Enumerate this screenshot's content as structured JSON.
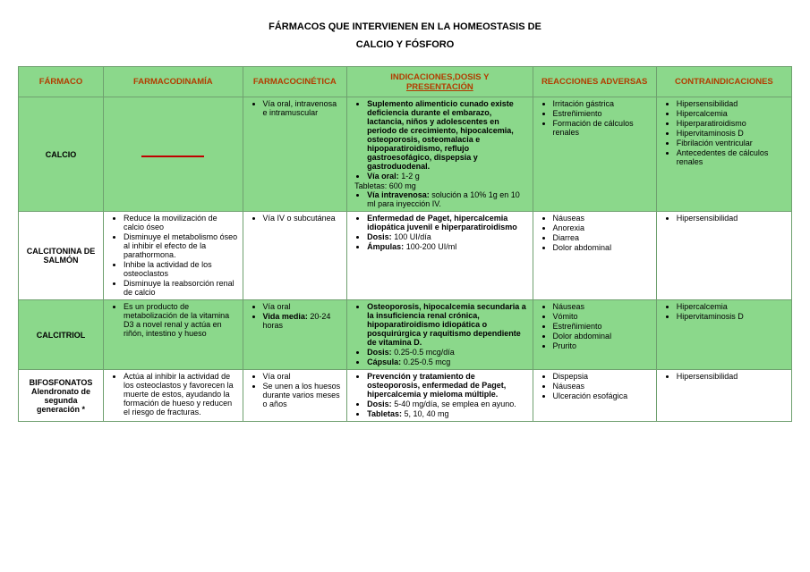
{
  "title_line1": "FÁRMACOS QUE INTERVIENEN EN LA HOMEOSTASIS DE",
  "title_line2": "CALCIO Y FÓSFORO",
  "headers": {
    "farmaco": "FÁRMACO",
    "farmacodinamia": "FARMACODINAMÍA",
    "farmacocinetica": "FARMACOCINÉTICA",
    "indicaciones_l1": "INDICACIONES,DOSIS Y",
    "indicaciones_l2": "PRESENTACIÓN",
    "reacciones": "REACCIONES ADVERSAS",
    "contraindicaciones": "CONTRAINDICACIONES"
  },
  "rows": {
    "calcio": {
      "name": "CALCIO",
      "cin_1": "Vía oral, intravenosa e intramuscular",
      "ind_1": "Suplemento alimenticio cunado existe deficiencia durante el embarazo, lactancia, niños y adolescentes en periodo de crecimiento, hipocalcemia, osteoporosis, osteomalacia e hipoparatiroidismo, reflujo gastroesofágico, dispepsia y gastroduodenal.",
      "ind_2a": "Vía oral:",
      "ind_2b": " 1-2 g",
      "ind_tab": "Tabletas: 600 mg",
      "ind_3a": "Vía intravenosa:",
      "ind_3b": " solución a 10% 1g en 10 ml para inyección IV.",
      "reac_1": "Irritación gástrica",
      "reac_2": "Estreñimiento",
      "reac_3": "Formación de cálculos renales",
      "con_1": "Hipersensibilidad",
      "con_2": "Hipercalcemia",
      "con_3": "Hiperparatiroidismo",
      "con_4": "Hipervitaminosis D",
      "con_5": "Fibrilación ventricular",
      "con_6": "Antecedentes de cálculos renales"
    },
    "calcitonina": {
      "name_l1": "CALCITONINA DE",
      "name_l2": "SALMÓN",
      "din_1": "Reduce la movilización de calcio óseo",
      "din_2": "Disminuye el metabolismo óseo al inhibir el efecto de la parathormona.",
      "din_3": "Inhibe la actividad de los osteoclastos",
      "din_4": "Disminuye la reabsorción renal de calcio",
      "cin_1": "Vía IV o subcutánea",
      "ind_1": "Enfermedad de Paget, hipercalcemia idiopática juvenil e hiperparatiroidismo",
      "ind_2a": "Dosis:",
      "ind_2b": " 100 UI/día",
      "ind_3a": "Ámpulas:",
      "ind_3b": " 100-200 UI/ml",
      "reac_1": "Náuseas",
      "reac_2": "Anorexia",
      "reac_3": "Diarrea",
      "reac_4": "Dolor abdominal",
      "con_1": "Hipersensibilidad"
    },
    "calcitriol": {
      "name": "CALCITRIOL",
      "din_1": "Es un producto de metabolización de la vitamina D3 a novel renal y actúa en riñón, intestino y hueso",
      "cin_1": "Vía oral",
      "cin_2a": "Vida media:",
      "cin_2b": " 20-24 horas",
      "ind_1": "Osteoporosis, hipocalcemia secundaria a la insuficiencia renal crónica, hipoparatiroidismo idiopática o posquirúrgica y raquitismo dependiente de vitamina D.",
      "ind_2a": "Dosis:",
      "ind_2b": " 0.25-0.5 mcg/día",
      "ind_3a": "Cápsula:",
      "ind_3b": " 0.25-0.5 mcg",
      "reac_1": "Náuseas",
      "reac_2": "Vómito",
      "reac_3": "Estreñimiento",
      "reac_4": "Dolor abdominal",
      "reac_5": "Prurito",
      "con_1": "Hipercalcemia",
      "con_2": "Hipervitaminosis D"
    },
    "bifosfonatos": {
      "name_l1": "BIFOSFONATOS",
      "name_l2": "Alendronato de",
      "name_l3": "segunda",
      "name_l4": "generación *",
      "din_1": "Actúa al inhibir la actividad de los osteoclastos y favorecen la muerte de estos, ayudando la formación de hueso y reducen el riesgo de fracturas.",
      "cin_1": "Vía oral",
      "cin_2": "Se unen a los huesos durante varios meses o años",
      "ind_1": "Prevención y tratamiento de osteoporosis, enfermedad de Paget, hipercalcemia y mieloma múltiple.",
      "ind_2a": "Dosis:",
      "ind_2b": " 5-40 mg/día, se emplea en ayuno.",
      "ind_3a": "Tabletas:",
      "ind_3b": " 5, 10, 40 mg",
      "reac_1": "Dispepsia",
      "reac_2": "Náuseas",
      "reac_3": "Ulceración esofágica",
      "con_1": "Hipersensibilidad"
    }
  },
  "colors": {
    "header_text": "#b33c00",
    "row_green": "#8bd88b",
    "border": "#6fa06f",
    "red_bar": "#c00000"
  }
}
